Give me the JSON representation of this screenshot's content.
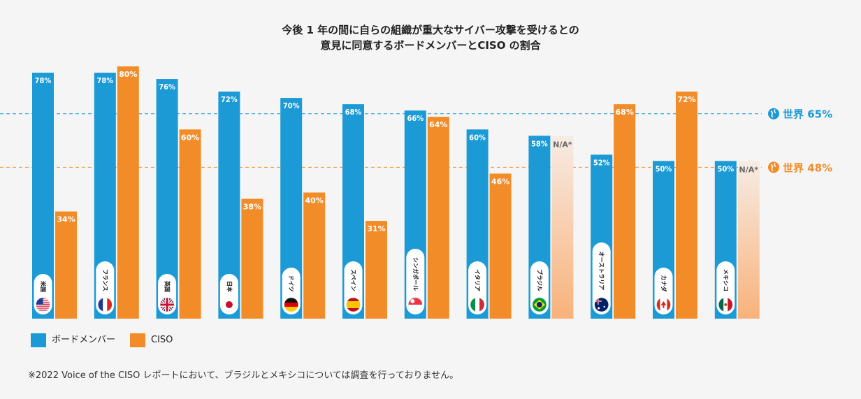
{
  "chart_data": {
    "type": "bar",
    "title_line1": "今後 1 年の間に自らの組織が重大なサイバー攻撃を受けるとの",
    "title_line2": "意見に同意するボードメンバーとCISO の割合",
    "categories": [
      "米国",
      "フランス",
      "英国",
      "日本",
      "ドイツ",
      "スペイン",
      "シンガポール",
      "イタリア",
      "ブラジル",
      "オーストラリア",
      "カナダ",
      "メキシコ"
    ],
    "series": [
      {
        "name": "ボードメンバー",
        "color": "#1b9ad6",
        "values": [
          78,
          78,
          76,
          72,
          70,
          68,
          66,
          60,
          58,
          52,
          50,
          50
        ],
        "labels": [
          "78%",
          "78%",
          "76%",
          "72%",
          "70%",
          "68%",
          "66%",
          "60%",
          "58%",
          "52%",
          "50%",
          "50%"
        ]
      },
      {
        "name": "CISO",
        "color": "#f28c28",
        "values": [
          34,
          80,
          60,
          38,
          40,
          31,
          64,
          46,
          null,
          68,
          72,
          null
        ],
        "labels": [
          "34%",
          "80%",
          "60%",
          "38%",
          "40%",
          "31%",
          "64%",
          "46%",
          "N/A*",
          "68%",
          "72%",
          "N/A*"
        ]
      }
    ],
    "reference_lines": [
      {
        "label": "世界 65%",
        "value": 65,
        "color": "#1b9ad6",
        "icon": "globe-icon"
      },
      {
        "label": "世界 48%",
        "value": 48,
        "color": "#f28c28",
        "icon": "globe-icon"
      }
    ],
    "flags": [
      "us-flag-icon",
      "france-flag-icon",
      "uk-flag-icon",
      "japan-flag-icon",
      "germany-flag-icon",
      "spain-flag-icon",
      "singapore-flag-icon",
      "italy-flag-icon",
      "brazil-flag-icon",
      "australia-flag-icon",
      "canada-flag-icon",
      "mexico-flag-icon"
    ],
    "ylim": [
      0,
      85
    ]
  },
  "legend": {
    "board": "ボードメンバー",
    "ciso": "CISO",
    "board_color": "#1b9ad6",
    "ciso_color": "#f28c28"
  },
  "footnote": "※2022 Voice of the CISO レポートにおいて、ブラジルとメキシコについては調査を行っておりません。"
}
